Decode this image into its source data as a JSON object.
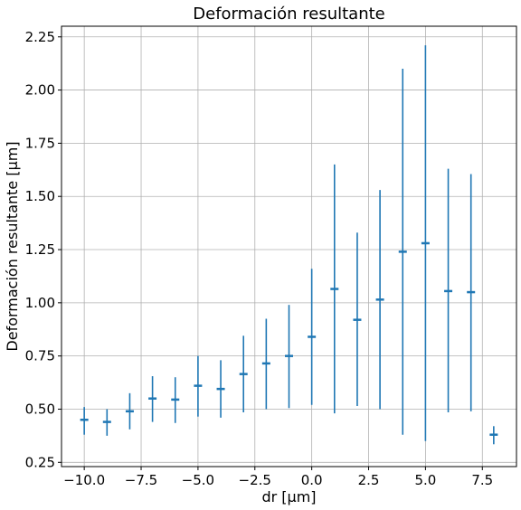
{
  "chart_data": {
    "type": "scatter",
    "title": "Deformación resultante",
    "xlabel": "dr [µm]",
    "ylabel": "Deformación resultante [µm]",
    "xlim": [
      -11.0,
      9.0
    ],
    "ylim": [
      0.23,
      2.3
    ],
    "xticks": [
      -10.0,
      -7.5,
      -5.0,
      -2.5,
      0.0,
      2.5,
      5.0,
      7.5
    ],
    "xtick_labels": [
      "−10.0",
      "−7.5",
      "−5.0",
      "−2.5",
      "0.0",
      "2.5",
      "5.0",
      "7.5"
    ],
    "yticks": [
      0.25,
      0.5,
      0.75,
      1.0,
      1.25,
      1.5,
      1.75,
      2.0,
      2.25
    ],
    "ytick_labels": [
      "0.25",
      "0.50",
      "0.75",
      "1.00",
      "1.25",
      "1.50",
      "1.75",
      "2.00",
      "2.25"
    ],
    "grid": true,
    "color": "#1f77b4",
    "series": [
      {
        "marker": "_",
        "error_bars": true,
        "x": [
          -10,
          -9,
          -8,
          -7,
          -6,
          -5,
          -4,
          -3,
          -2,
          -1,
          0,
          1,
          2,
          3,
          4,
          5,
          6,
          7,
          8
        ],
        "y": [
          0.45,
          0.44,
          0.49,
          0.55,
          0.545,
          0.61,
          0.595,
          0.665,
          0.715,
          0.75,
          0.84,
          1.065,
          0.92,
          1.015,
          1.24,
          1.28,
          1.055,
          1.05,
          0.38
        ],
        "ylow": [
          0.38,
          0.375,
          0.405,
          0.44,
          0.435,
          0.465,
          0.46,
          0.485,
          0.5,
          0.505,
          0.52,
          0.48,
          0.515,
          0.5,
          0.38,
          0.35,
          0.485,
          0.49,
          0.335
        ],
        "yhigh": [
          0.51,
          0.5,
          0.575,
          0.655,
          0.65,
          0.75,
          0.73,
          0.845,
          0.925,
          0.99,
          1.16,
          1.65,
          1.33,
          1.53,
          2.1,
          2.21,
          1.63,
          1.605,
          0.42
        ]
      }
    ]
  }
}
